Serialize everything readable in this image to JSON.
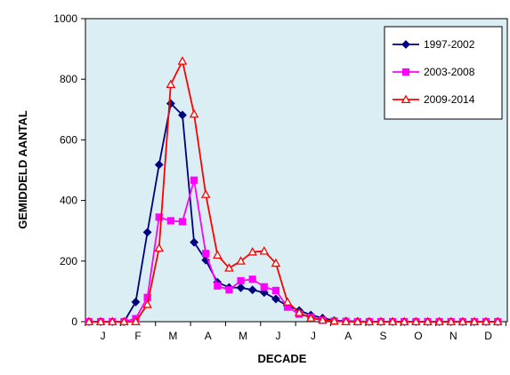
{
  "chart_data": {
    "type": "line",
    "title": "",
    "xlabel": "DECADE",
    "ylabel": "GEMIDDELD AANTAL",
    "ylim": [
      0,
      1000
    ],
    "yticks": [
      0,
      200,
      400,
      600,
      800,
      1000
    ],
    "x_month_labels": [
      "J",
      "F",
      "M",
      "A",
      "M",
      "J",
      "J",
      "A",
      "S",
      "O",
      "N",
      "D"
    ],
    "x": [
      1,
      2,
      3,
      4,
      5,
      6,
      7,
      8,
      9,
      10,
      11,
      12,
      13,
      14,
      15,
      16,
      17,
      18,
      19,
      20,
      21,
      22,
      23,
      24,
      25,
      26,
      27,
      28,
      29,
      30,
      31,
      32,
      33,
      34,
      35,
      36
    ],
    "grid": false,
    "legend_position": "top-right",
    "plot_background": "#dbeef4",
    "series": [
      {
        "name": "1997-2002",
        "color": "#000080",
        "marker": "diamond",
        "values": [
          0,
          0,
          0,
          0,
          65,
          295,
          518,
          720,
          682,
          262,
          203,
          130,
          113,
          112,
          105,
          96,
          75,
          52,
          37,
          22,
          12,
          4,
          2,
          1,
          0,
          0,
          0,
          0,
          0,
          0,
          0,
          0,
          0,
          0,
          0,
          0
        ]
      },
      {
        "name": "2003-2008",
        "color": "#ff00ff",
        "marker": "square",
        "values": [
          0,
          0,
          0,
          0,
          10,
          80,
          345,
          333,
          330,
          467,
          225,
          118,
          105,
          135,
          140,
          115,
          103,
          48,
          25,
          15,
          5,
          2,
          1,
          0,
          0,
          0,
          0,
          0,
          0,
          0,
          0,
          0,
          0,
          0,
          0,
          0
        ]
      },
      {
        "name": "2009-2014",
        "color": "#ff0000",
        "marker": "triangle",
        "values": [
          0,
          0,
          0,
          0,
          0,
          57,
          243,
          783,
          860,
          685,
          420,
          220,
          177,
          200,
          230,
          233,
          193,
          65,
          30,
          12,
          5,
          2,
          0,
          0,
          0,
          0,
          0,
          0,
          0,
          0,
          0,
          0,
          0,
          0,
          0,
          0
        ]
      }
    ]
  }
}
